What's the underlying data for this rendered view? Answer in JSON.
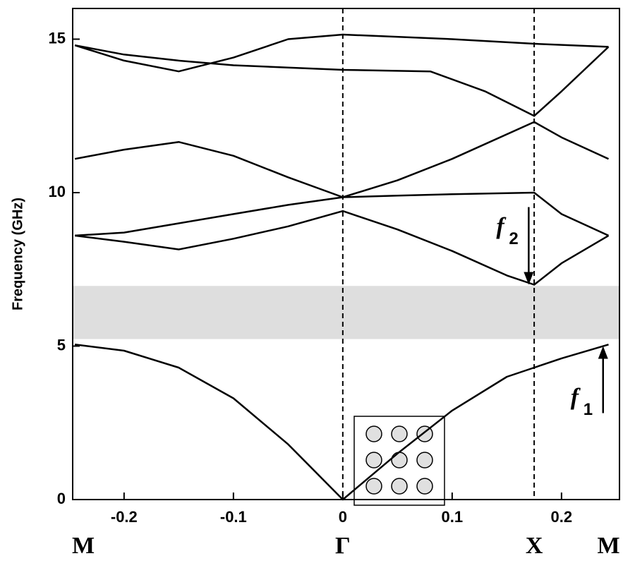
{
  "chart_data": {
    "type": "line",
    "ylabel": "Frequency (GHz)",
    "xlim": [
      -0.247,
      0.253
    ],
    "ylim": [
      0,
      16
    ],
    "xticks": [
      -0.2,
      -0.1,
      0,
      0.1,
      0.2
    ],
    "yticks": [
      0,
      5,
      10,
      15
    ],
    "shaded_band": [
      5.23,
      6.96
    ],
    "symmetry_points": [
      {
        "label": "M",
        "x": -0.247,
        "dashed": false
      },
      {
        "label": "Γ",
        "x": 0,
        "dashed": true
      },
      {
        "label": "X",
        "x": 0.175,
        "dashed": true
      },
      {
        "label": "M",
        "x": 0.243,
        "dashed": false
      }
    ],
    "annotations": [
      {
        "label": "f",
        "sub": "2",
        "x": 0.17,
        "value": 7.0
      },
      {
        "label": "f",
        "sub": "1",
        "x": 0.238,
        "value": 5.0
      }
    ],
    "series": [
      {
        "color": "#000000",
        "x": [
          -0.245,
          -0.2,
          -0.15,
          -0.1,
          -0.05,
          0,
          0.05,
          0.1,
          0.15,
          0.175,
          0.2,
          0.243
        ],
        "values": [
          5.05,
          4.85,
          4.3,
          3.3,
          1.8,
          0,
          1.5,
          2.9,
          4.0,
          4.3,
          4.6,
          5.05
        ]
      },
      {
        "color": "#000000",
        "x": [
          -0.245,
          -0.2,
          -0.15,
          -0.1,
          -0.05,
          0,
          0.05,
          0.1,
          0.15,
          0.175,
          0.2,
          0.243
        ],
        "values": [
          8.6,
          8.4,
          8.15,
          8.5,
          8.9,
          9.4,
          8.8,
          8.1,
          7.3,
          7.0,
          7.7,
          8.6
        ]
      },
      {
        "color": "#000000",
        "x": [
          -0.245,
          -0.2,
          -0.15,
          -0.1,
          -0.05,
          0,
          0.05,
          0.1,
          0.175,
          0.2,
          0.243
        ],
        "values": [
          8.6,
          8.7,
          9.0,
          9.3,
          9.6,
          9.85,
          9.9,
          9.95,
          10.0,
          9.3,
          8.6
        ]
      },
      {
        "color": "#000000",
        "x": [
          -0.245,
          -0.2,
          -0.15,
          -0.1,
          -0.05,
          0,
          0.05,
          0.1,
          0.175,
          0.2,
          0.243
        ],
        "values": [
          11.1,
          11.4,
          11.65,
          11.2,
          10.5,
          9.85,
          10.4,
          11.1,
          12.3,
          11.8,
          11.1
        ]
      },
      {
        "color": "#000000",
        "x": [
          -0.245,
          -0.2,
          -0.15,
          -0.1,
          -0.05,
          0,
          0.1,
          0.175,
          0.243
        ],
        "values": [
          14.8,
          14.3,
          13.95,
          14.4,
          15.0,
          15.15,
          15.0,
          14.85,
          14.75
        ]
      },
      {
        "color": "#000000",
        "x": [
          -0.245,
          -0.2,
          -0.15,
          -0.1,
          0,
          0.08,
          0.13,
          0.175,
          0.2,
          0.243
        ],
        "values": [
          14.8,
          14.5,
          14.3,
          14.15,
          14.0,
          13.95,
          13.3,
          12.5,
          13.3,
          14.75
        ]
      }
    ]
  }
}
